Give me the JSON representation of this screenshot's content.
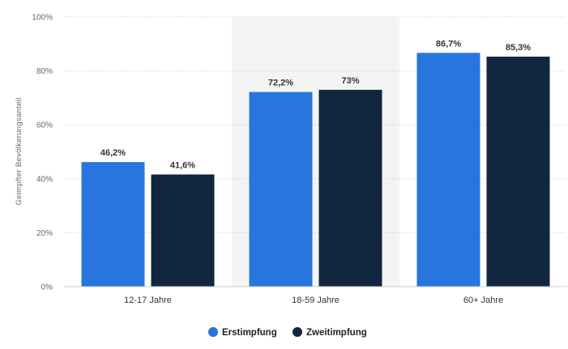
{
  "chart_data": {
    "type": "bar",
    "title": "",
    "xlabel": "",
    "ylabel": "Geimpfter Bevölkerungsanteil",
    "ylim": [
      0,
      100
    ],
    "yticks": [
      0,
      20,
      40,
      60,
      80,
      100
    ],
    "ytick_labels": [
      "0%",
      "20%",
      "40%",
      "60%",
      "80%",
      "100%"
    ],
    "categories": [
      "12-17 Jahre",
      "18-59 Jahre",
      "60+ Jahre"
    ],
    "highlighted_category": "18-59 Jahre",
    "series": [
      {
        "name": "Erstimpfung",
        "color": "#2876dd",
        "values": [
          46.2,
          72.2,
          86.7
        ],
        "labels": [
          "46,2%",
          "72,2%",
          "86,7%"
        ]
      },
      {
        "name": "Zweitimpfung",
        "color": "#12263f",
        "values": [
          41.6,
          73,
          85.3
        ],
        "labels": [
          "41,6%",
          "73%",
          "85,3%"
        ]
      }
    ],
    "grid": true,
    "legend_position": "bottom-center"
  }
}
